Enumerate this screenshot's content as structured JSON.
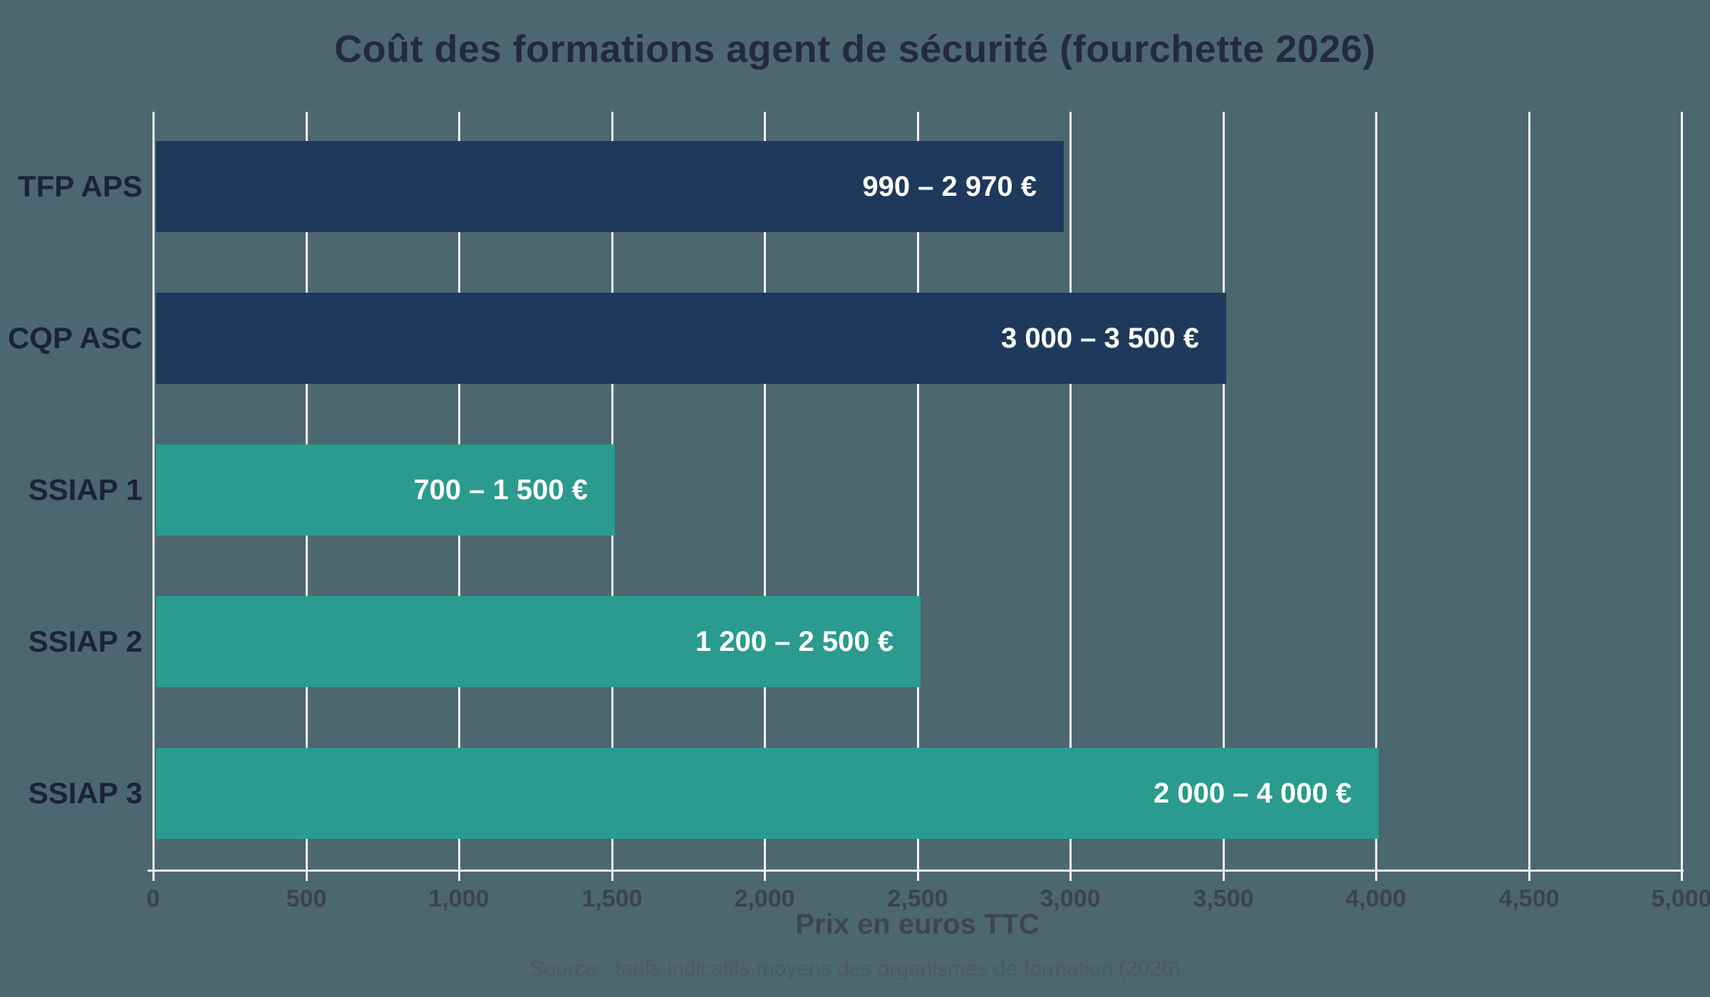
{
  "title": "Coût des formations agent de sécurité (fourchette 2026)",
  "source": "Source : tarifs indicatifs moyens des organismes de formation (2026)",
  "colors": {
    "background": "#4D6771",
    "bar_navy": "#1F395C",
    "bar_teal": "#2A9B8E",
    "gridline": "#F2F5F5",
    "axis_line": "#F2F5F5",
    "title_text": "#242A3E",
    "category_text": "#1B2338",
    "tick_text": "#3A444E",
    "axis_label_text": "#3E464D",
    "source_text": "#4F5A61",
    "bar_label_text": "#FFFFFF"
  },
  "chart_data": {
    "type": "bar",
    "orientation": "horizontal",
    "title": "Coût des formations agent de sécurité (fourchette 2026)",
    "xlabel": "Prix en euros TTC",
    "ylabel": "",
    "xlim": [
      0,
      5000
    ],
    "xticks": [
      0,
      500,
      1000,
      1500,
      2000,
      2500,
      3000,
      3500,
      4000,
      4500,
      5000
    ],
    "xtick_labels": [
      "0",
      "500",
      "1,000",
      "1,500",
      "2,000",
      "2,500",
      "3,000",
      "3,500",
      "4,000",
      "4,500",
      "5,000"
    ],
    "grid": true,
    "legend": false,
    "categories": [
      "TFP APS",
      "CQP ASC",
      "SSIAP 1",
      "SSIAP 2",
      "SSIAP 3"
    ],
    "series": [
      {
        "category": "TFP APS",
        "min": 990,
        "max": 2970,
        "bar_value": 2970,
        "label": "990 – 2 970 €",
        "color": "#1F395C"
      },
      {
        "category": "CQP ASC",
        "min": 3000,
        "max": 3500,
        "bar_value": 3500,
        "label": "3 000 – 3 500 €",
        "color": "#1F395C"
      },
      {
        "category": "SSIAP 1",
        "min": 700,
        "max": 1500,
        "bar_value": 1500,
        "label": "700 – 1 500 €",
        "color": "#2A9B8E"
      },
      {
        "category": "SSIAP 2",
        "min": 1200,
        "max": 2500,
        "bar_value": 2500,
        "label": "1 200 – 2 500 €",
        "color": "#2A9B8E"
      },
      {
        "category": "SSIAP 3",
        "min": 2000,
        "max": 4000,
        "bar_value": 4000,
        "label": "2 000 – 4 000 €",
        "color": "#2A9B8E"
      }
    ]
  }
}
